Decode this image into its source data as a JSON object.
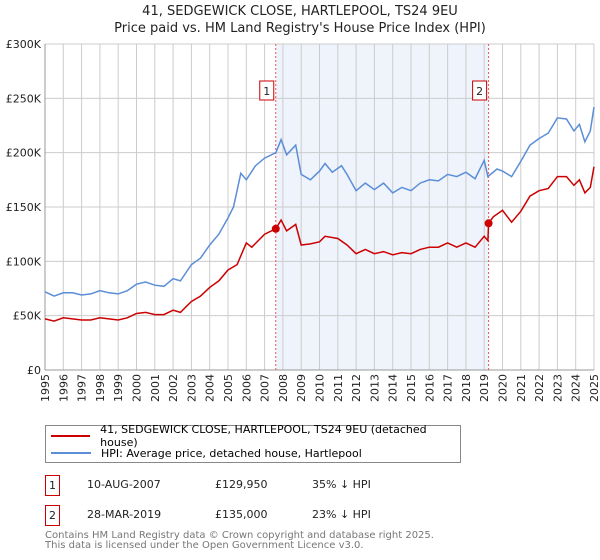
{
  "chart_data": {
    "type": "line",
    "title": "41, SEDGEWICK CLOSE, HARTLEPOOL, TS24 9EU",
    "subtitle": "Price paid vs. HM Land Registry's House Price Index (HPI)",
    "xlim": [
      1995,
      2025
    ],
    "ylim": [
      0,
      300000
    ],
    "yticks": [
      {
        "v": 0,
        "label": "£0"
      },
      {
        "v": 50000,
        "label": "£50K"
      },
      {
        "v": 100000,
        "label": "£100K"
      },
      {
        "v": 150000,
        "label": "£150K"
      },
      {
        "v": 200000,
        "label": "£200K"
      },
      {
        "v": 250000,
        "label": "£250K"
      },
      {
        "v": 300000,
        "label": "£300K"
      }
    ],
    "xticks": [
      "1995",
      "1996",
      "1997",
      "1998",
      "1999",
      "2000",
      "2001",
      "2002",
      "2003",
      "2004",
      "2005",
      "2006",
      "2007",
      "2008",
      "2009",
      "2010",
      "2011",
      "2012",
      "2013",
      "2014",
      "2015",
      "2016",
      "2017",
      "2018",
      "2019",
      "2020",
      "2021",
      "2022",
      "2023",
      "2024",
      "2025"
    ],
    "grid": true,
    "shaded_range": [
      2007.61,
      2019.24
    ],
    "series": [
      {
        "name": "41, SEDGEWICK CLOSE, HARTLEPOOL, TS24 9EU (detached house)",
        "color": "#cc0000",
        "x": [
          1995,
          1995.5,
          1996,
          1996.5,
          1997,
          1997.5,
          1998,
          1998.5,
          1999,
          1999.5,
          2000,
          2000.5,
          2001,
          2001.5,
          2002,
          2002.4,
          2003,
          2003.5,
          2004,
          2004.5,
          2005,
          2005.5,
          2006,
          2006.3,
          2007,
          2007.61,
          2007.9,
          2008.2,
          2008.7,
          2009,
          2009.5,
          2010,
          2010.3,
          2011,
          2011.5,
          2012,
          2012.5,
          2013,
          2013.5,
          2014,
          2014.5,
          2015,
          2015.5,
          2016,
          2016.5,
          2017,
          2017.5,
          2018,
          2018.5,
          2019,
          2019.2,
          2019.24,
          2019.5,
          2020,
          2020.5,
          2021,
          2021.5,
          2022,
          2022.5,
          2023,
          2023.5,
          2023.9,
          2024.2,
          2024.5,
          2024.8,
          2025
        ],
        "y": [
          47000,
          45000,
          48000,
          47000,
          46000,
          46000,
          48000,
          47000,
          46000,
          48000,
          52000,
          53000,
          51000,
          51000,
          55000,
          53000,
          63000,
          68000,
          76000,
          82000,
          92000,
          97000,
          117000,
          113000,
          125000,
          129950,
          138000,
          128000,
          134000,
          115000,
          116000,
          118000,
          123000,
          121000,
          115000,
          107000,
          111000,
          107000,
          109000,
          106000,
          108000,
          107000,
          111000,
          113000,
          113000,
          117000,
          113000,
          117000,
          113000,
          123000,
          119000,
          135000,
          141000,
          147000,
          136000,
          146000,
          160000,
          165000,
          167000,
          178000,
          178000,
          170000,
          175000,
          163000,
          168000,
          187000
        ]
      },
      {
        "name": "HPI: Average price, detached house, Hartlepool",
        "color": "#5b8ed6",
        "x": [
          1995,
          1995.5,
          1996,
          1996.5,
          1997,
          1997.5,
          1998,
          1998.5,
          1999,
          1999.5,
          2000,
          2000.5,
          2001,
          2001.5,
          2002,
          2002.4,
          2003,
          2003.5,
          2004,
          2004.5,
          2005,
          2005.3,
          2005.7,
          2006,
          2006.5,
          2007,
          2007.61,
          2007.9,
          2008.2,
          2008.7,
          2009,
          2009.5,
          2010,
          2010.3,
          2010.7,
          2011.2,
          2011.5,
          2012,
          2012.5,
          2013,
          2013.5,
          2014,
          2014.5,
          2015,
          2015.5,
          2016,
          2016.5,
          2017,
          2017.5,
          2018,
          2018.5,
          2019,
          2019.2,
          2019.7,
          2020,
          2020.5,
          2021,
          2021.5,
          2022,
          2022.5,
          2023,
          2023.5,
          2023.9,
          2024.2,
          2024.5,
          2024.8,
          2025
        ],
        "y": [
          72000,
          68000,
          71000,
          71000,
          69000,
          70000,
          73000,
          71000,
          70000,
          73000,
          79000,
          81000,
          78000,
          77000,
          84000,
          82000,
          97000,
          103000,
          115000,
          125000,
          140000,
          150000,
          181000,
          175000,
          188000,
          195000,
          200000,
          212000,
          198000,
          207000,
          180000,
          175000,
          183000,
          190000,
          182000,
          188000,
          180000,
          165000,
          172000,
          166000,
          172000,
          163000,
          168000,
          165000,
          172000,
          175000,
          174000,
          180000,
          178000,
          182000,
          176000,
          193000,
          178000,
          185000,
          183000,
          178000,
          192000,
          207000,
          213000,
          218000,
          232000,
          231000,
          220000,
          226000,
          210000,
          220000,
          242000
        ]
      }
    ],
    "annotations": [
      {
        "label": "1",
        "x": 2007.61,
        "y": 129950
      },
      {
        "label": "2",
        "x": 2019.24,
        "y": 135000
      }
    ]
  },
  "legend": {
    "property": "41, SEDGEWICK CLOSE, HARTLEPOOL, TS24 9EU (detached house)",
    "hpi": "HPI: Average price, detached house, Hartlepool"
  },
  "sales": [
    {
      "num": "1",
      "date": "10-AUG-2007",
      "price": "£129,950",
      "diff": "35% ↓ HPI"
    },
    {
      "num": "2",
      "date": "28-MAR-2019",
      "price": "£135,000",
      "diff": "23% ↓ HPI"
    }
  ],
  "footer": {
    "line1": "Contains HM Land Registry data © Crown copyright and database right 2025.",
    "line2": "This data is licensed under the Open Government Licence v3.0."
  }
}
